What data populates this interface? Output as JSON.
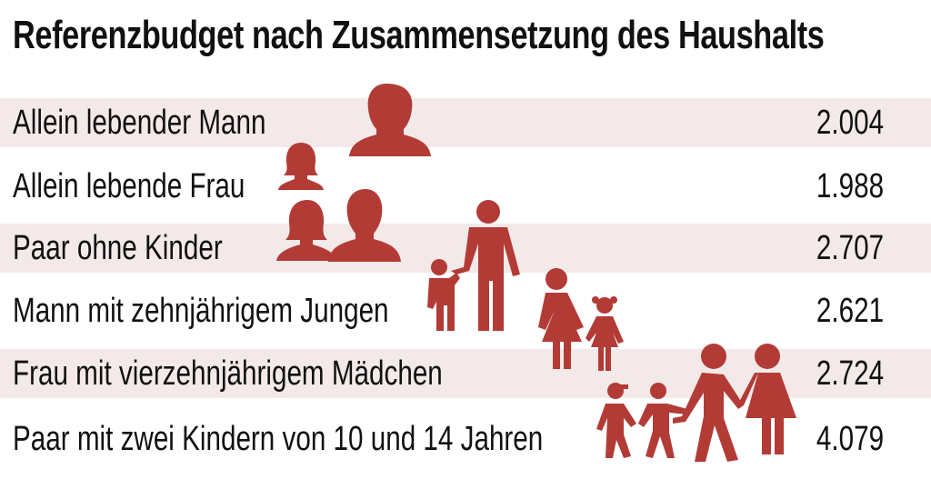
{
  "title": "Referenzbudget nach Zusammensetzung des Haushalts",
  "colors": {
    "icon": "#b33b36",
    "band": "#f3e9e9"
  },
  "chart_data": {
    "type": "table",
    "title": "Referenzbudget nach Zusammensetzung des Haushalts",
    "rows": [
      {
        "label": "Allein lebender Mann",
        "value": "2.004",
        "icon": "man-icon"
      },
      {
        "label": "Allein lebende Frau",
        "value": "1.988",
        "icon": "woman-icon"
      },
      {
        "label": "Paar ohne Kinder",
        "value": "2.707",
        "icon": "couple-icon"
      },
      {
        "label": "Mann mit zehnjährigem Jungen",
        "value": "2.621",
        "icon": "father-son-icon"
      },
      {
        "label": "Frau mit vierzehnjährigem Mädchen",
        "value": "2.724",
        "icon": "mother-daughter-icon"
      },
      {
        "label": "Paar mit zwei Kindern von 10 und 14 Jahren",
        "value": "4.079",
        "icon": "family-icon"
      }
    ]
  }
}
